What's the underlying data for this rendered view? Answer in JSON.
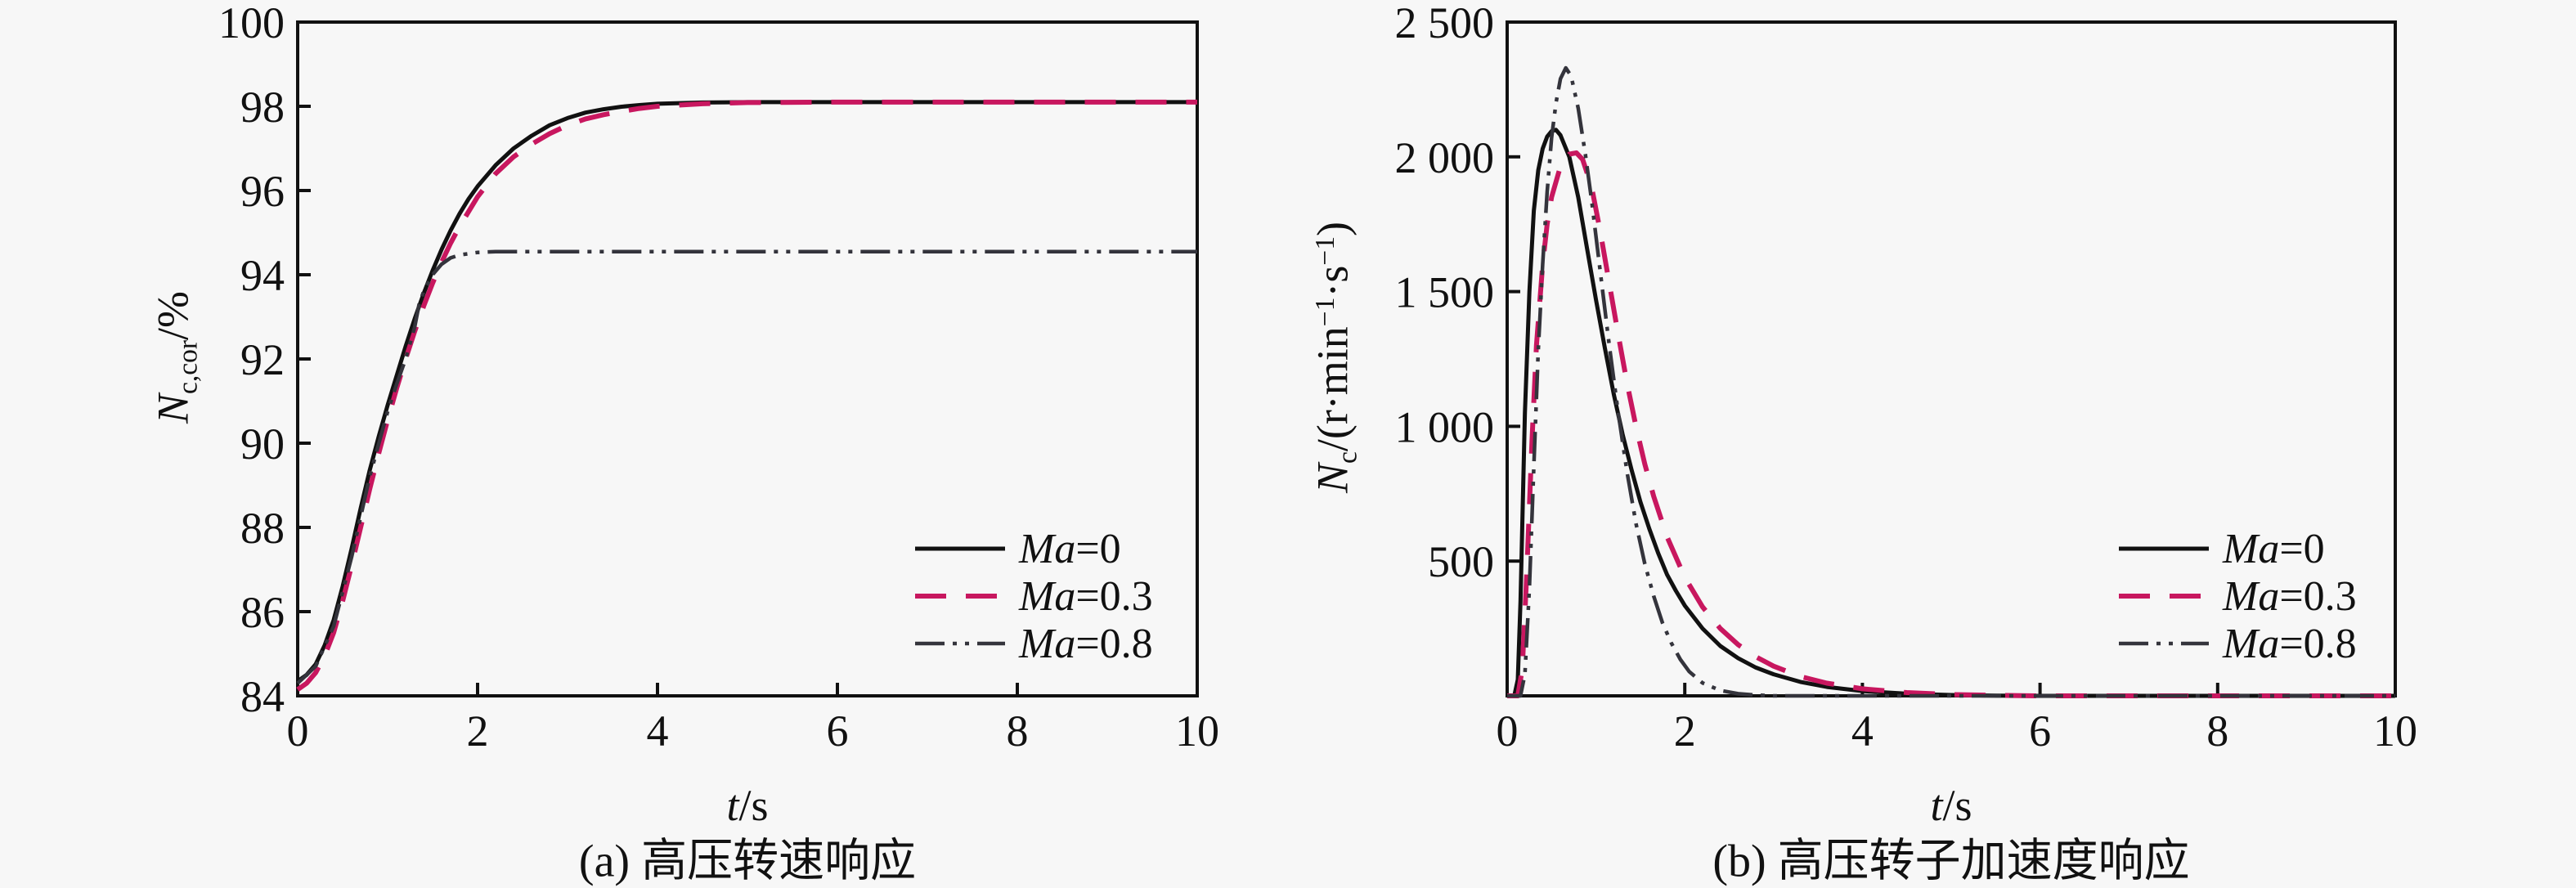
{
  "figure": {
    "background": "#f7f7f7",
    "frame_color": "#111111",
    "accent_dashed_color": "#c8175f",
    "dashdot_color": "#34343c"
  },
  "chart_data": [
    {
      "type": "line",
      "panel": "a",
      "caption": "(a) 高压转速响应",
      "xlabel": "t/s",
      "ylabel": "N c,cor /%",
      "xlabel_segments": [
        {
          "t": "t",
          "style": "italic"
        },
        {
          "t": "/s",
          "style": "normal"
        }
      ],
      "ylabel_segments": [
        {
          "t": "N",
          "style": "italic"
        },
        {
          "t": "c,cor",
          "style": "sub"
        },
        {
          "t": "/%",
          "style": "normal"
        }
      ],
      "xlim": [
        0,
        10
      ],
      "ylim": [
        84,
        100
      ],
      "xticks": [
        0,
        2,
        4,
        6,
        8,
        10
      ],
      "xtick_labels": [
        "0",
        "2",
        "4",
        "6",
        "8",
        "10"
      ],
      "yticks": [
        84,
        86,
        88,
        90,
        92,
        94,
        96,
        98,
        100
      ],
      "ytick_labels": [
        "84",
        "86",
        "88",
        "90",
        "92",
        "94",
        "96",
        "98",
        "100"
      ],
      "grid": false,
      "legend_position": "lower right",
      "series": [
        {
          "name": "Ma=0",
          "name_segments": [
            {
              "t": "Ma",
              "style": "italic"
            },
            {
              "t": "=0",
              "style": "normal"
            }
          ],
          "line_style": "solid",
          "color": "#111111",
          "points": [
            [
              0,
              84.35
            ],
            [
              0.1,
              84.5
            ],
            [
              0.2,
              84.75
            ],
            [
              0.3,
              85.2
            ],
            [
              0.4,
              85.8
            ],
            [
              0.5,
              86.6
            ],
            [
              0.6,
              87.5
            ],
            [
              0.7,
              88.45
            ],
            [
              0.8,
              89.35
            ],
            [
              0.9,
              90.15
            ],
            [
              1.0,
              90.9
            ],
            [
              1.1,
              91.6
            ],
            [
              1.2,
              92.3
            ],
            [
              1.3,
              92.95
            ],
            [
              1.4,
              93.55
            ],
            [
              1.5,
              94.1
            ],
            [
              1.6,
              94.6
            ],
            [
              1.7,
              95.05
            ],
            [
              1.8,
              95.45
            ],
            [
              1.9,
              95.8
            ],
            [
              2.0,
              96.1
            ],
            [
              2.2,
              96.6
            ],
            [
              2.4,
              97.0
            ],
            [
              2.6,
              97.3
            ],
            [
              2.8,
              97.55
            ],
            [
              3.0,
              97.72
            ],
            [
              3.2,
              97.85
            ],
            [
              3.4,
              97.93
            ],
            [
              3.6,
              97.99
            ],
            [
              3.8,
              98.03
            ],
            [
              4.0,
              98.06
            ],
            [
              4.5,
              98.09
            ],
            [
              5.0,
              98.1
            ],
            [
              6,
              98.1
            ],
            [
              7,
              98.1
            ],
            [
              8,
              98.1
            ],
            [
              9,
              98.1
            ],
            [
              10,
              98.1
            ]
          ]
        },
        {
          "name": "Ma=0.3",
          "name_segments": [
            {
              "t": "Ma",
              "style": "italic"
            },
            {
              "t": "=0.3",
              "style": "normal"
            }
          ],
          "line_style": "dashed",
          "color": "#c8175f",
          "points": [
            [
              0,
              84.15
            ],
            [
              0.1,
              84.3
            ],
            [
              0.2,
              84.55
            ],
            [
              0.3,
              84.95
            ],
            [
              0.4,
              85.5
            ],
            [
              0.5,
              86.25
            ],
            [
              0.6,
              87.1
            ],
            [
              0.7,
              88.0
            ],
            [
              0.8,
              88.9
            ],
            [
              0.9,
              89.75
            ],
            [
              1.0,
              90.55
            ],
            [
              1.1,
              91.3
            ],
            [
              1.2,
              92.0
            ],
            [
              1.3,
              92.65
            ],
            [
              1.4,
              93.25
            ],
            [
              1.5,
              93.8
            ],
            [
              1.6,
              94.3
            ],
            [
              1.7,
              94.75
            ],
            [
              1.8,
              95.15
            ],
            [
              1.9,
              95.5
            ],
            [
              2.0,
              95.85
            ],
            [
              2.2,
              96.4
            ],
            [
              2.4,
              96.8
            ],
            [
              2.6,
              97.1
            ],
            [
              2.8,
              97.35
            ],
            [
              3.0,
              97.55
            ],
            [
              3.2,
              97.7
            ],
            [
              3.4,
              97.8
            ],
            [
              3.6,
              97.88
            ],
            [
              3.8,
              97.95
            ],
            [
              4.0,
              98.0
            ],
            [
              4.5,
              98.06
            ],
            [
              5.0,
              98.09
            ],
            [
              6,
              98.1
            ],
            [
              7,
              98.1
            ],
            [
              8,
              98.1
            ],
            [
              9,
              98.1
            ],
            [
              10,
              98.1
            ]
          ]
        },
        {
          "name": "Ma=0.8",
          "name_segments": [
            {
              "t": "Ma",
              "style": "italic"
            },
            {
              "t": "=0.8",
              "style": "normal"
            }
          ],
          "line_style": "dashdotdot",
          "color": "#34343c",
          "points": [
            [
              0,
              84.3
            ],
            [
              0.2,
              84.7
            ],
            [
              0.4,
              85.65
            ],
            [
              0.6,
              87.3
            ],
            [
              0.8,
              89.2
            ],
            [
              1.0,
              90.75
            ],
            [
              1.1,
              91.4
            ],
            [
              1.2,
              92.0
            ],
            [
              1.3,
              92.75
            ],
            [
              1.35,
              93.3
            ],
            [
              1.4,
              93.6
            ],
            [
              1.5,
              94.0
            ],
            [
              1.6,
              94.25
            ],
            [
              1.7,
              94.4
            ],
            [
              1.8,
              94.47
            ],
            [
              2.0,
              94.53
            ],
            [
              2.2,
              94.55
            ],
            [
              3,
              94.55
            ],
            [
              4,
              94.55
            ],
            [
              5,
              94.55
            ],
            [
              6,
              94.55
            ],
            [
              7,
              94.55
            ],
            [
              8,
              94.55
            ],
            [
              9,
              94.55
            ],
            [
              10,
              94.55
            ]
          ]
        }
      ]
    },
    {
      "type": "line",
      "panel": "b",
      "caption": "(b) 高压转子加速度响应",
      "xlabel": "t/s",
      "ylabel": "N c /(r·min−1·s−1)",
      "xlabel_segments": [
        {
          "t": "t",
          "style": "italic"
        },
        {
          "t": "/s",
          "style": "normal"
        }
      ],
      "ylabel_segments": [
        {
          "t": "N",
          "style": "italic"
        },
        {
          "t": "c",
          "style": "sub"
        },
        {
          "t": "/(r·min",
          "style": "normal"
        },
        {
          "t": "−1",
          "style": "sup"
        },
        {
          "t": "·s",
          "style": "normal"
        },
        {
          "t": "−1",
          "style": "sup"
        },
        {
          "t": ")",
          "style": "normal"
        }
      ],
      "xlim": [
        0,
        10
      ],
      "ylim": [
        0,
        2500
      ],
      "xticks": [
        0,
        2,
        4,
        6,
        8,
        10
      ],
      "xtick_labels": [
        "0",
        "2",
        "4",
        "6",
        "8",
        "10"
      ],
      "yticks": [
        0,
        500,
        1000,
        1500,
        2000,
        2500
      ],
      "ytick_labels": [
        "",
        "500",
        "1 000",
        "1 500",
        "2 000",
        "2 500"
      ],
      "grid": false,
      "legend_position": "lower right",
      "series": [
        {
          "name": "Ma=0",
          "name_segments": [
            {
              "t": "Ma",
              "style": "italic"
            },
            {
              "t": "=0",
              "style": "normal"
            }
          ],
          "line_style": "solid",
          "color": "#111111",
          "points": [
            [
              0,
              0
            ],
            [
              0.08,
              0
            ],
            [
              0.12,
              60
            ],
            [
              0.15,
              350
            ],
            [
              0.2,
              1050
            ],
            [
              0.25,
              1500
            ],
            [
              0.3,
              1800
            ],
            [
              0.35,
              1950
            ],
            [
              0.4,
              2030
            ],
            [
              0.45,
              2075
            ],
            [
              0.5,
              2095
            ],
            [
              0.55,
              2100
            ],
            [
              0.6,
              2080
            ],
            [
              0.7,
              2000
            ],
            [
              0.8,
              1850
            ],
            [
              0.9,
              1660
            ],
            [
              1.0,
              1470
            ],
            [
              1.1,
              1290
            ],
            [
              1.2,
              1120
            ],
            [
              1.3,
              970
            ],
            [
              1.4,
              840
            ],
            [
              1.5,
              720
            ],
            [
              1.6,
              620
            ],
            [
              1.7,
              530
            ],
            [
              1.8,
              450
            ],
            [
              1.9,
              390
            ],
            [
              2.0,
              335
            ],
            [
              2.2,
              250
            ],
            [
              2.4,
              185
            ],
            [
              2.6,
              140
            ],
            [
              2.8,
              105
            ],
            [
              3.0,
              80
            ],
            [
              3.3,
              52
            ],
            [
              3.6,
              33
            ],
            [
              4.0,
              18
            ],
            [
              4.5,
              8
            ],
            [
              5.0,
              3
            ],
            [
              5.5,
              1
            ],
            [
              6,
              0
            ],
            [
              8,
              0
            ],
            [
              10,
              0
            ]
          ]
        },
        {
          "name": "Ma=0.3",
          "name_segments": [
            {
              "t": "Ma",
              "style": "italic"
            },
            {
              "t": "=0.3",
              "style": "normal"
            }
          ],
          "line_style": "dashed",
          "color": "#c8175f",
          "points": [
            [
              0,
              0
            ],
            [
              0.12,
              0
            ],
            [
              0.17,
              100
            ],
            [
              0.22,
              450
            ],
            [
              0.28,
              950
            ],
            [
              0.33,
              1300
            ],
            [
              0.4,
              1600
            ],
            [
              0.45,
              1750
            ],
            [
              0.5,
              1850
            ],
            [
              0.6,
              1965
            ],
            [
              0.7,
              2010
            ],
            [
              0.78,
              2015
            ],
            [
              0.85,
              1990
            ],
            [
              0.95,
              1890
            ],
            [
              1.05,
              1720
            ],
            [
              1.15,
              1530
            ],
            [
              1.25,
              1340
            ],
            [
              1.35,
              1160
            ],
            [
              1.45,
              1000
            ],
            [
              1.55,
              860
            ],
            [
              1.65,
              740
            ],
            [
              1.8,
              590
            ],
            [
              2.0,
              440
            ],
            [
              2.2,
              330
            ],
            [
              2.4,
              250
            ],
            [
              2.6,
              190
            ],
            [
              2.8,
              145
            ],
            [
              3.0,
              110
            ],
            [
              3.3,
              72
            ],
            [
              3.6,
              47
            ],
            [
              4.0,
              26
            ],
            [
              4.5,
              12
            ],
            [
              5.0,
              5
            ],
            [
              5.5,
              2
            ],
            [
              6,
              0
            ],
            [
              8,
              0
            ],
            [
              10,
              0
            ]
          ]
        },
        {
          "name": "Ma=0.8",
          "name_segments": [
            {
              "t": "Ma",
              "style": "italic"
            },
            {
              "t": "=0.8",
              "style": "normal"
            }
          ],
          "line_style": "dashdotdot",
          "color": "#34343c",
          "points": [
            [
              0,
              0
            ],
            [
              0.15,
              0
            ],
            [
              0.2,
              80
            ],
            [
              0.25,
              400
            ],
            [
              0.3,
              850
            ],
            [
              0.35,
              1280
            ],
            [
              0.4,
              1600
            ],
            [
              0.45,
              1870
            ],
            [
              0.5,
              2070
            ],
            [
              0.55,
              2200
            ],
            [
              0.6,
              2290
            ],
            [
              0.66,
              2330
            ],
            [
              0.72,
              2300
            ],
            [
              0.8,
              2180
            ],
            [
              0.88,
              2010
            ],
            [
              0.95,
              1840
            ],
            [
              1.05,
              1570
            ],
            [
              1.15,
              1300
            ],
            [
              1.25,
              1050
            ],
            [
              1.35,
              830
            ],
            [
              1.45,
              640
            ],
            [
              1.55,
              490
            ],
            [
              1.65,
              370
            ],
            [
              1.75,
              270
            ],
            [
              1.85,
              195
            ],
            [
              1.95,
              135
            ],
            [
              2.05,
              90
            ],
            [
              2.2,
              48
            ],
            [
              2.4,
              20
            ],
            [
              2.6,
              8
            ],
            [
              2.8,
              3
            ],
            [
              3.0,
              0
            ],
            [
              4,
              0
            ],
            [
              6,
              0
            ],
            [
              8,
              0
            ],
            [
              10,
              0
            ]
          ]
        }
      ]
    }
  ]
}
